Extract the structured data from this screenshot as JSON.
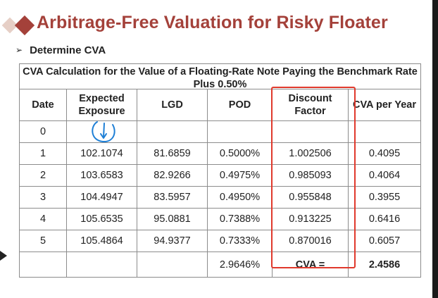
{
  "title": "Arbitrage-Free Valuation for Risky Floater",
  "subhead": "Determine CVA",
  "table": {
    "caption": "CVA Calculation for the Value of a Floating-Rate Note Paying the Benchmark Rate Plus 0.50%",
    "headers": [
      "Date",
      "Expected Exposure",
      "LGD",
      "POD",
      "Discount Factor",
      "CVA per Year"
    ],
    "rows": [
      [
        "0",
        "",
        "",
        "",
        "",
        ""
      ],
      [
        "1",
        "102.1074",
        "81.6859",
        "0.5000%",
        "1.002506",
        "0.4095"
      ],
      [
        "2",
        "103.6583",
        "82.9266",
        "0.4975%",
        "0.985093",
        "0.4064"
      ],
      [
        "3",
        "104.4947",
        "83.5957",
        "0.4950%",
        "0.955848",
        "0.3955"
      ],
      [
        "4",
        "105.6535",
        "95.0881",
        "0.7388%",
        "0.913225",
        "0.6416"
      ],
      [
        "5",
        "105.4864",
        "94.9377",
        "0.7333%",
        "0.870016",
        "0.6057"
      ]
    ],
    "summary": {
      "pod_total": "2.9646%",
      "cva_label": "CVA =",
      "cva_value": "2.4586"
    }
  },
  "colors": {
    "title": "#a4413a",
    "highlight": "#e0392c",
    "pen": "#1e7fd6"
  },
  "icons": {
    "bullet": "arrow-bullet-icon",
    "play": "play-icon"
  }
}
